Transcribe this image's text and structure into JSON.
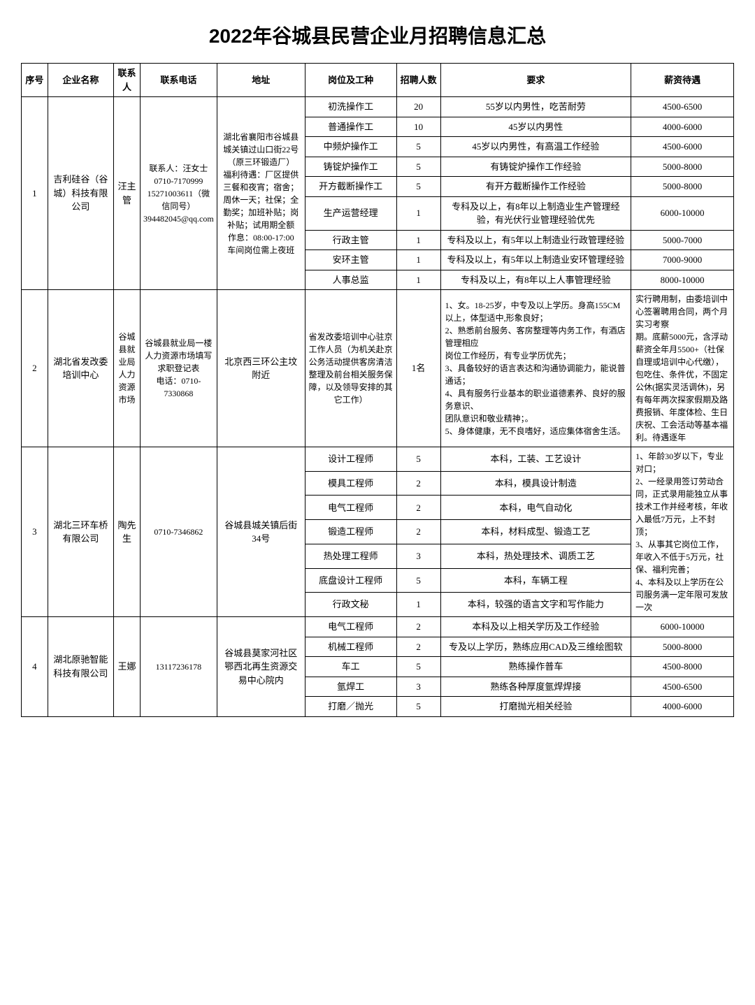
{
  "title": "2022年谷城县民营企业月招聘信息汇总",
  "headers": {
    "seq": "序号",
    "company": "企业名称",
    "contact": "联系人",
    "phone": "联系电话",
    "address": "地址",
    "position": "岗位及工种",
    "count": "招聘人数",
    "requirement": "要求",
    "salary": "薪资待遇"
  },
  "c1": {
    "seq": "1",
    "company": "吉利硅谷（谷城）科技有限公司",
    "contact": "汪主管",
    "phone": "联系人：汪女士\n0710-7170999\n15271003611（微信同号）\n394482045@qq.com",
    "address": "湖北省襄阳市谷城县城关镇过山口街22号（原三环锻造厂）\n福利待遇：厂区提供三餐和夜宵；宿舍；周休一天；社保；全勤奖；加班补贴；岗补贴；试用期全额\n作息：08:00-17:00　车间岗位需上夜班",
    "rows": [
      {
        "pos": "初洗操作工",
        "cnt": "20",
        "req": "55岁以内男性，吃苦耐劳",
        "sal": "4500-6500"
      },
      {
        "pos": "普通操作工",
        "cnt": "10",
        "req": "45岁以内男性",
        "sal": "4000-6000"
      },
      {
        "pos": "中频炉操作工",
        "cnt": "5",
        "req": "45岁以内男性，有高温工作经验",
        "sal": "4500-6000"
      },
      {
        "pos": "铸锭炉操作工",
        "cnt": "5",
        "req": "有铸锭炉操作工作经验",
        "sal": "5000-8000"
      },
      {
        "pos": "开方截断操作工",
        "cnt": "5",
        "req": "有开方截断操作工作经验",
        "sal": "5000-8000"
      },
      {
        "pos": "生产运营经理",
        "cnt": "1",
        "req": "专科及以上，有8年以上制造业生产管理经验，有光伏行业管理经验优先",
        "sal": "6000-10000"
      },
      {
        "pos": "行政主管",
        "cnt": "1",
        "req": "专科及以上，有5年以上制造业行政管理经验",
        "sal": "5000-7000"
      },
      {
        "pos": "安环主管",
        "cnt": "1",
        "req": "专科及以上，有5年以上制造业安环管理经验",
        "sal": "7000-9000"
      },
      {
        "pos": "人事总监",
        "cnt": "1",
        "req": "专科及以上，有8年以上人事管理经验",
        "sal": "8000-10000"
      }
    ]
  },
  "c2": {
    "seq": "2",
    "company": "湖北省发改委培训中心",
    "contact": "谷城县就业局人力资源市场",
    "phone": "谷城县就业局一楼人力资源市场填写求职登记表\n电话：0710-7330868",
    "address": "北京西三环公主坟附近",
    "pos": "省发改委培训中心驻京工作人员（为机关赴京公务活动提供客房清洁整理及前台相关服务保障，以及领导安排的其它工作）",
    "cnt": "1名",
    "req": "1、女。18-25岁，中专及以上学历。身高155CM以上，体型适中,形象良好；\n2、熟悉前台服务、客房整理等内务工作，有酒店管理相应\n岗位工作经历，有专业学历优先；\n3、具备较好的语言表达和沟通协调能力，能说普通话；\n4、具有服务行业基本的职业道德素养、良好的服务意识、\n团队意识和敬业精神；。\n5、身体健康，无不良嗜好，适应集体宿舍生活。",
    "sal": "实行聘用制，由委培训中心签署聘用合同，两个月实习考察\n期。底薪5000元，含浮动薪资全年月5500+（社保自理或培训中心代缴），包吃住、条件优，不固定公休(据实灵活调休)，另有每年两次探家假期及路费报销、年度体检、生日庆祝、工会活动等基本福利。待遇逐年"
  },
  "c3": {
    "seq": "3",
    "company": "湖北三环车桥有限公司",
    "contact": "陶先生",
    "phone": "0710-7346862",
    "address": "谷城县城关镇后街34号",
    "salary": "1、年龄30岁以下，专业对口；\n2、一经录用签订劳动合同，正式录用能独立从事技术工作并经考核，年收入最低7万元，上不封顶；\n3、从事其它岗位工作，年收入不低于5万元，社保、福利完善；\n4、本科及以上学历在公司服务满一定年限可发放一次",
    "rows": [
      {
        "pos": "设计工程师",
        "cnt": "5",
        "req": "本科，工装、工艺设计"
      },
      {
        "pos": "模具工程师",
        "cnt": "2",
        "req": "本科，模具设计制造"
      },
      {
        "pos": "电气工程师",
        "cnt": "2",
        "req": "本科，电气自动化"
      },
      {
        "pos": "锻造工程师",
        "cnt": "2",
        "req": "本科，材料成型、锻造工艺"
      },
      {
        "pos": "热处理工程师",
        "cnt": "3",
        "req": "本科，热处理技术、调质工艺"
      },
      {
        "pos": "底盘设计工程师",
        "cnt": "5",
        "req": "本科，车辆工程"
      },
      {
        "pos": "行政文秘",
        "cnt": "1",
        "req": "本科，较强的语言文字和写作能力"
      }
    ]
  },
  "c4": {
    "seq": "4",
    "company": "湖北原驰智能科技有限公司",
    "contact": "王娜",
    "phone": "13117236178",
    "address": "谷城县莫家河社区鄂西北再生资源交易中心院内",
    "rows": [
      {
        "pos": "电气工程师",
        "cnt": "2",
        "req": "本科及以上相关学历及工作经验",
        "sal": "6000-10000"
      },
      {
        "pos": "机械工程师",
        "cnt": "2",
        "req": "专及以上学历，熟练应用CAD及三维绘图软",
        "sal": "5000-8000"
      },
      {
        "pos": "车工",
        "cnt": "5",
        "req": "熟练操作普车",
        "sal": "4500-8000"
      },
      {
        "pos": "氩焊工",
        "cnt": "3",
        "req": "熟练各种厚度氩焊焊接",
        "sal": "4500-6500"
      },
      {
        "pos": "打磨／抛光",
        "cnt": "5",
        "req": "打磨抛光相关经验",
        "sal": "4000-6000"
      }
    ]
  }
}
